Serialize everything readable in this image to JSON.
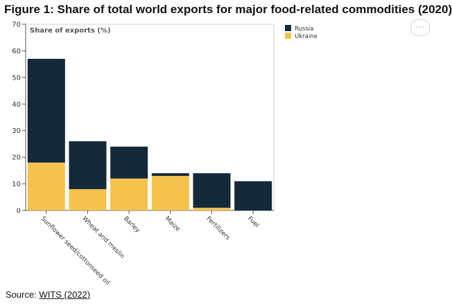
{
  "figure": {
    "title": "Figure 1: Share of total world exports for major food-related commodities (2020)",
    "source_label": "Source: ",
    "source_link": "WITS (2022)",
    "more_button": "···"
  },
  "chart_data": {
    "type": "bar",
    "stacked": true,
    "title": "",
    "ylabel": "Share of exports (%)",
    "xlabel": "",
    "ylim": [
      0,
      70
    ],
    "yticks": [
      0,
      10,
      20,
      30,
      40,
      50,
      60,
      70
    ],
    "grid": false,
    "legend_position": "top-right",
    "categories": [
      "Sunflower seed/cottonseed oil",
      "Wheat and meslin",
      "Barley",
      "Maize",
      "Fertilizers",
      "Fuel"
    ],
    "series": [
      {
        "name": "Ukraine",
        "color": "#f4c24d",
        "values": [
          18,
          8,
          12,
          13,
          1,
          0
        ]
      },
      {
        "name": "Russia",
        "color": "#14293a",
        "values": [
          39,
          18,
          12,
          1,
          13,
          11
        ]
      }
    ],
    "legend_order": [
      "Russia",
      "Ukraine"
    ]
  }
}
